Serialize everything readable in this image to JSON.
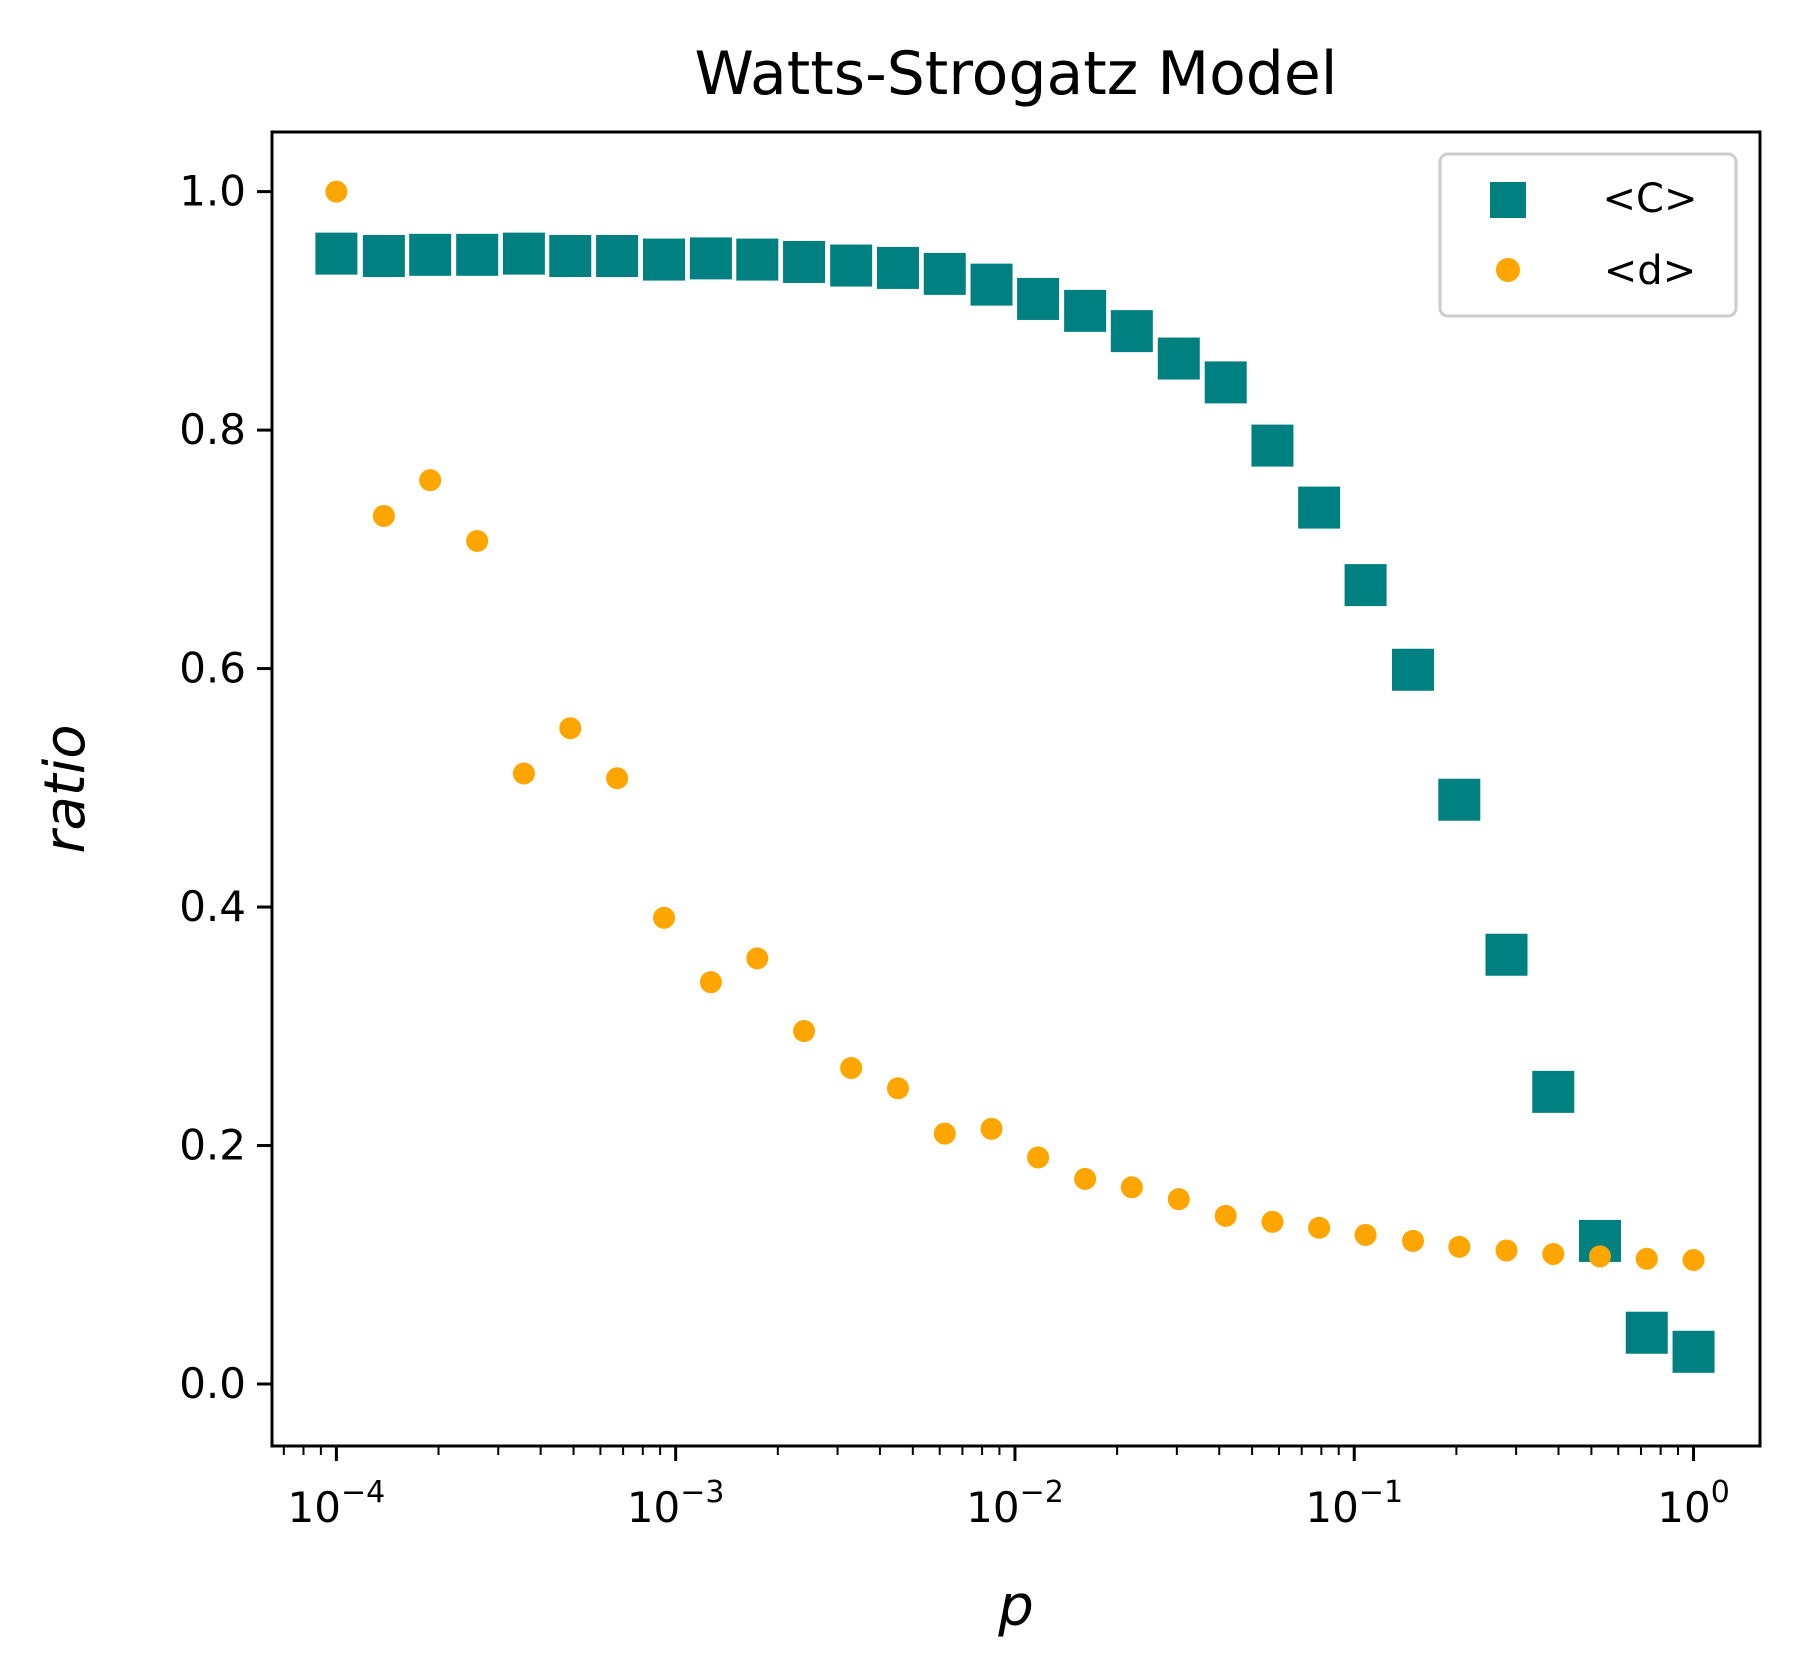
{
  "chart_data": {
    "type": "scatter",
    "title": "Watts-Strogatz Model",
    "xlabel": "p",
    "ylabel": "ratio",
    "xscale": "log",
    "xlim": [
      6.46e-05,
      1.57
    ],
    "ylim": [
      -0.052,
      1.05
    ],
    "grid": false,
    "legend_position": "top-right",
    "xticks": [
      {
        "value": 0.0001,
        "base": "10",
        "exp": "−4"
      },
      {
        "value": 0.001,
        "base": "10",
        "exp": "−3"
      },
      {
        "value": 0.01,
        "base": "10",
        "exp": "−2"
      },
      {
        "value": 0.1,
        "base": "10",
        "exp": "−1"
      },
      {
        "value": 1,
        "base": "10",
        "exp": "0"
      }
    ],
    "yticks": [
      {
        "value": 0.0,
        "label": "0.0"
      },
      {
        "value": 0.2,
        "label": "0.2"
      },
      {
        "value": 0.4,
        "label": "0.4"
      },
      {
        "value": 0.6,
        "label": "0.6"
      },
      {
        "value": 0.8,
        "label": "0.8"
      },
      {
        "value": 1.0,
        "label": "1.0"
      }
    ],
    "series": [
      {
        "name": "<C>",
        "marker": "square",
        "color": "#008080",
        "x": [
          0.0001,
          0.000138,
          0.000189,
          0.00026,
          0.000357,
          0.000489,
          0.000672,
          0.000924,
          0.00127,
          0.00174,
          0.00239,
          0.00329,
          0.00452,
          0.00621,
          0.00853,
          0.0117,
          0.0161,
          0.0221,
          0.0304,
          0.0418,
          0.0574,
          0.0788,
          0.108,
          0.149,
          0.204,
          0.281,
          0.386,
          0.53,
          0.728,
          1.0
        ],
        "y": [
          0.948,
          0.946,
          0.947,
          0.947,
          0.948,
          0.946,
          0.946,
          0.943,
          0.944,
          0.943,
          0.941,
          0.938,
          0.936,
          0.931,
          0.922,
          0.91,
          0.9,
          0.883,
          0.86,
          0.84,
          0.787,
          0.735,
          0.67,
          0.599,
          0.49,
          0.36,
          0.245,
          0.12,
          0.043,
          0.027
        ]
      },
      {
        "name": "<d>",
        "marker": "circle",
        "color": "#ffa500",
        "x": [
          0.0001,
          0.000138,
          0.000189,
          0.00026,
          0.000357,
          0.000489,
          0.000672,
          0.000924,
          0.00127,
          0.00174,
          0.00239,
          0.00329,
          0.00452,
          0.00621,
          0.00853,
          0.0117,
          0.0161,
          0.0221,
          0.0304,
          0.0418,
          0.0574,
          0.0788,
          0.108,
          0.149,
          0.204,
          0.281,
          0.386,
          0.53,
          0.728,
          1.0
        ],
        "y": [
          1.0,
          0.728,
          0.758,
          0.707,
          0.512,
          0.55,
          0.508,
          0.391,
          0.337,
          0.357,
          0.296,
          0.265,
          0.248,
          0.21,
          0.214,
          0.19,
          0.172,
          0.165,
          0.155,
          0.141,
          0.136,
          0.131,
          0.125,
          0.12,
          0.115,
          0.112,
          0.109,
          0.107,
          0.105,
          0.104
        ]
      }
    ]
  }
}
